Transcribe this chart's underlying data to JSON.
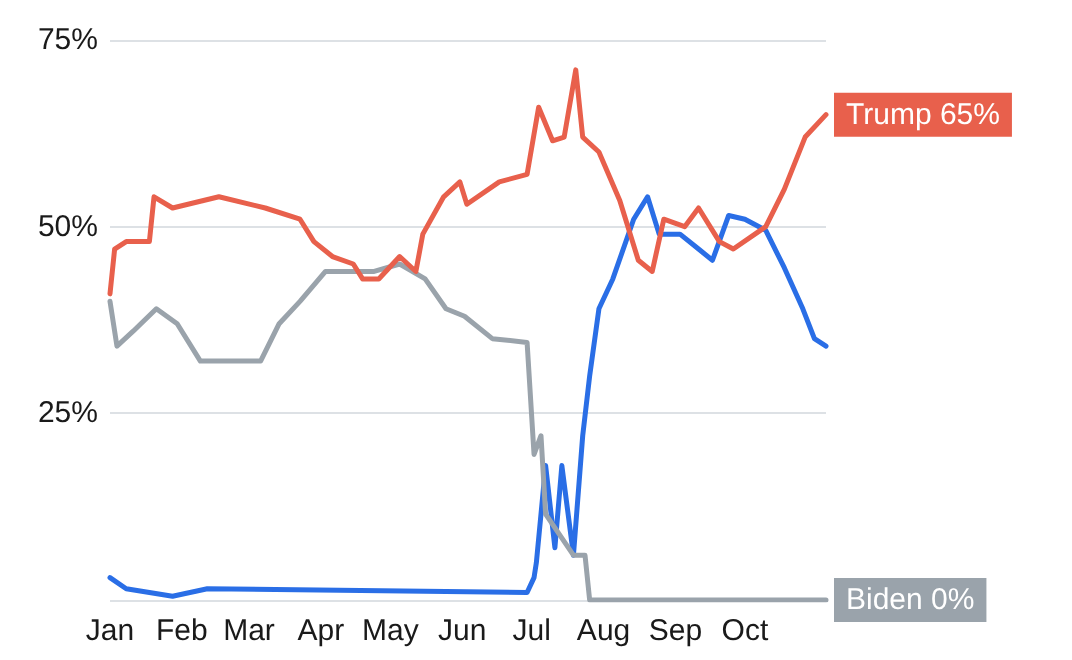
{
  "chart_data": {
    "type": "line",
    "xlim": [
      "--01-01",
      "--11-05"
    ],
    "xticks": [
      {
        "value": "--01-01",
        "label": "Jan"
      },
      {
        "value": "--02-01",
        "label": "Feb"
      },
      {
        "value": "--03-01",
        "label": "Mar"
      },
      {
        "value": "--04-01",
        "label": "Apr"
      },
      {
        "value": "--05-01",
        "label": "May"
      },
      {
        "value": "--06-01",
        "label": "Jun"
      },
      {
        "value": "--07-01",
        "label": "Jul"
      },
      {
        "value": "--08-01",
        "label": "Aug"
      },
      {
        "value": "--09-01",
        "label": "Sep"
      },
      {
        "value": "--10-01",
        "label": "Oct"
      }
    ],
    "ylim": [
      0,
      75
    ],
    "yticks": [
      {
        "value": 0,
        "label": null
      },
      {
        "value": 25,
        "label": "25%"
      },
      {
        "value": 50,
        "label": "50%"
      },
      {
        "value": 75,
        "label": "75%"
      }
    ],
    "grid": "y",
    "marker": "none",
    "line_style": "solid",
    "series": [
      {
        "color": "#e8604c",
        "x": [
          "--01-01",
          "--01-03",
          "--01-08",
          "--01-18",
          "--01-20",
          "--01-28",
          "--02-17",
          "--03-08",
          "--03-23",
          "--03-29",
          "--04-06",
          "--04-15",
          "--04-19",
          "--04-26",
          "--05-05",
          "--05-12",
          "--05-15",
          "--05-24",
          "--05-31",
          "--06-03",
          "--06-17",
          "--06-29",
          "--07-04",
          "--07-10",
          "--07-15",
          "--07-20",
          "--07-23",
          "--07-30",
          "--08-08",
          "--08-16",
          "--08-22",
          "--08-27",
          "--09-05",
          "--09-11",
          "--09-20",
          "--09-26",
          "--10-10",
          "--10-18",
          "--10-27",
          "--11-05"
        ],
        "values": [
          41,
          47,
          48,
          48,
          54,
          52.5,
          54,
          52.5,
          51,
          48,
          46,
          45,
          43,
          43,
          46,
          44,
          49,
          54,
          56,
          53,
          56,
          57,
          66,
          61.5,
          62,
          71,
          62,
          60,
          53.5,
          45.5,
          44,
          51,
          50,
          52.5,
          48,
          47,
          50,
          55,
          62,
          65
        ]
      },
      {
        "color": "#9aa3ab",
        "x": [
          "--01-01",
          "--01-04",
          "--01-11",
          "--01-21",
          "--01-30",
          "--02-09",
          "--03-06",
          "--03-14",
          "--03-23",
          "--04-03",
          "--04-15",
          "--04-24",
          "--05-05",
          "--05-16",
          "--05-25",
          "--06-02",
          "--06-14",
          "--06-29",
          "--07-02",
          "--07-05",
          "--07-07",
          "--07-19",
          "--07-24",
          "--07-26",
          "--11-05"
        ],
        "values": [
          40,
          34,
          36,
          39,
          37,
          32,
          32,
          37,
          40,
          44,
          44,
          44,
          45,
          43,
          39,
          38,
          35,
          34.5,
          19.5,
          22,
          11.5,
          6,
          6,
          0,
          0
        ]
      },
      {
        "color": "#2a6ee6",
        "x": [
          "--01-01",
          "--01-08",
          "--01-28",
          "--02-12",
          "--06-29",
          "--07-02",
          "--07-03",
          "--07-07",
          "--07-11",
          "--07-14",
          "--07-19",
          "--07-23",
          "--07-26",
          "--07-30",
          "--08-05",
          "--08-14",
          "--08-20",
          "--08-25",
          "--09-03",
          "--09-11",
          "--09-17",
          "--09-24",
          "--10-01",
          "--10-10",
          "--10-18",
          "--10-26",
          "--10-31",
          "--11-05"
        ],
        "values": [
          3,
          1.5,
          0.5,
          1.5,
          1,
          3,
          5,
          18,
          7,
          18,
          6,
          22,
          30,
          39,
          43,
          51,
          54,
          49,
          49,
          47,
          45.5,
          51.5,
          51,
          49.5,
          44.5,
          39,
          35,
          34
        ]
      }
    ],
    "annotations": [
      {
        "text": "Trump 65%",
        "x": "--11-05",
        "y": 65
      },
      {
        "text": "Biden 0%",
        "x": "--11-05",
        "y": 0
      }
    ]
  }
}
